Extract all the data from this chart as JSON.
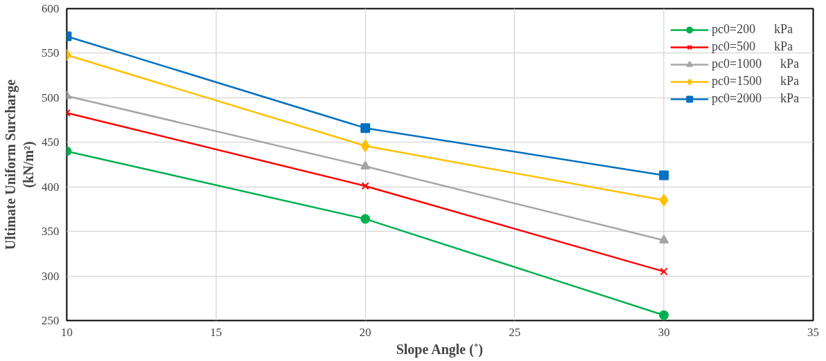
{
  "chart_data": {
    "type": "line",
    "xlabel": "Slope Angle (˚)",
    "ylabel": "Ultimate Uniform Surcharge\n(kN/m²)",
    "x": [
      10,
      20,
      30
    ],
    "xlim": [
      10,
      35
    ],
    "xticks": [
      10,
      15,
      20,
      25,
      30,
      35
    ],
    "ylim": [
      250,
      600
    ],
    "yticks": [
      250,
      300,
      350,
      400,
      450,
      500,
      550,
      600
    ],
    "grid": true,
    "legend": "top right",
    "series": [
      {
        "name": "pc0=200      kPa",
        "color": "#00b050",
        "marker": "circle",
        "values": [
          440,
          364,
          256
        ]
      },
      {
        "name": "pc0=500      kPa",
        "color": "#ff0000",
        "marker": "cross",
        "values": [
          483,
          401,
          305
        ]
      },
      {
        "name": "pc0=1000      kPa",
        "color": "#a5a5a5",
        "marker": "triangle",
        "values": [
          502,
          423,
          340
        ]
      },
      {
        "name": "pc0=1500      kPa",
        "color": "#ffc000",
        "marker": "diamond",
        "values": [
          548,
          446,
          385
        ]
      },
      {
        "name": "pc0=2000      kPa",
        "color": "#0070c0",
        "marker": "square",
        "values": [
          569,
          466,
          413
        ]
      }
    ]
  }
}
